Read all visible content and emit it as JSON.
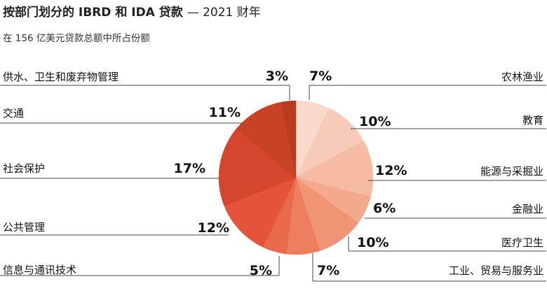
{
  "title_main": "按部门划分的 IBRD 和 IDA 贷款",
  "title_year": "— 2021 财年",
  "subtitle": "在 156 亿美元贷款总额中所占份额",
  "chart_data": {
    "type": "pie",
    "title": "按部门划分的 IBRD 和 IDA 贷款 — 2021 财年",
    "subtitle": "在 156 亿美元贷款总额中所占份额",
    "unit": "%",
    "direction": "clockwise from top",
    "slices": [
      {
        "label": "农林渔业",
        "value": 7,
        "display": "7%",
        "color": "#f9d9cc",
        "side": "right"
      },
      {
        "label": "教育",
        "value": 10,
        "display": "10%",
        "color": "#f7cbb7",
        "side": "right"
      },
      {
        "label": "能源与采掘业",
        "value": 12,
        "display": "12%",
        "color": "#f5bca3",
        "side": "right"
      },
      {
        "label": "金融业",
        "value": 6,
        "display": "6%",
        "color": "#f3a98c",
        "side": "right"
      },
      {
        "label": "医疗卫生",
        "value": 10,
        "display": "10%",
        "color": "#ef9475",
        "side": "right"
      },
      {
        "label": "工业、贸易与服务业",
        "value": 7,
        "display": "7%",
        "color": "#ec7e5d",
        "side": "right"
      },
      {
        "label": "信息与通讯技术",
        "value": 5,
        "display": "5%",
        "color": "#e96a4b",
        "side": "left"
      },
      {
        "label": "公共管理",
        "value": 12,
        "display": "12%",
        "color": "#e4533a",
        "side": "left"
      },
      {
        "label": "社会保护",
        "value": 17,
        "display": "17%",
        "color": "#d4462d",
        "side": "left"
      },
      {
        "label": "交通",
        "value": 11,
        "display": "11%",
        "color": "#c84325",
        "side": "left"
      },
      {
        "label": "供水、卫生和废弃物管理",
        "value": 3,
        "display": "3%",
        "color": "#b83c1f",
        "side": "left"
      }
    ]
  }
}
